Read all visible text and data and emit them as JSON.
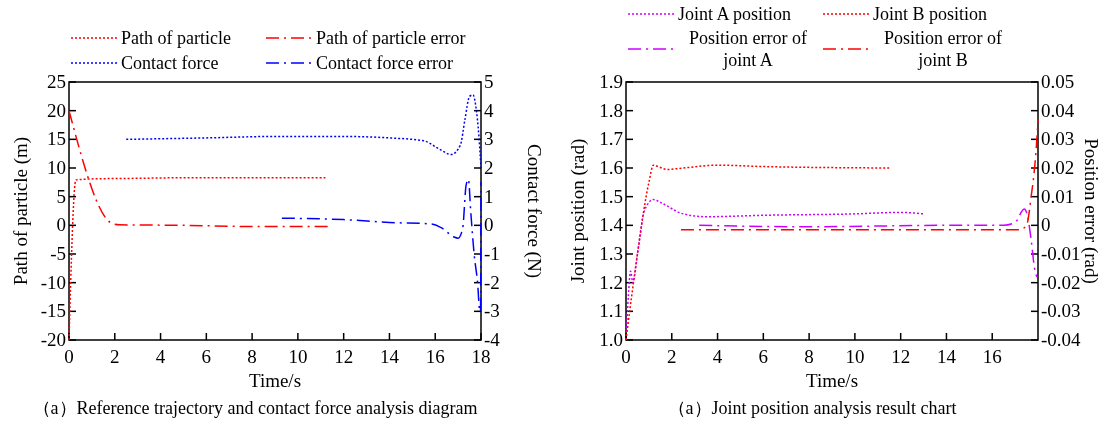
{
  "chart_data": [
    {
      "type": "line",
      "xlabel": "Time/s",
      "ylabel": "Path of particle (m)",
      "y2label": "Contact force (N)",
      "xlim": [
        0,
        18
      ],
      "xticks": [
        0,
        2,
        4,
        6,
        8,
        10,
        12,
        14,
        16,
        18
      ],
      "ylim": [
        -20,
        25
      ],
      "yticks": [
        -20,
        -15,
        -10,
        -5,
        0,
        5,
        10,
        15,
        20,
        25
      ],
      "y2lim": [
        -4,
        5
      ],
      "y2ticks": [
        -4,
        -3,
        -2,
        -1,
        0,
        1,
        2,
        3,
        4,
        5
      ],
      "grid": false,
      "legend": "top",
      "marker": "none",
      "annotations": [
        "（a）Reference trajectory and contact force analysis diagram"
      ],
      "series": [
        {
          "name": "Path of particle",
          "color": "#ff0000",
          "line_style": "dotted",
          "x": [
            0,
            0.3,
            1,
            3,
            5,
            8,
            11.2
          ],
          "values": [
            -20,
            7.9,
            8.1,
            8.2,
            8.3,
            8.3,
            8.3
          ]
        },
        {
          "name": "Path of particle error",
          "color": "#ff0000",
          "line_style": "dashdot",
          "x": [
            0,
            1.9,
            2.2,
            5,
            8,
            9,
            11.3
          ],
          "values": [
            20,
            0.3,
            0.1,
            0,
            -0.2,
            -0.2,
            -0.2
          ]
        },
        {
          "name": "Contact force",
          "color": "#0000ff",
          "line_style": "dotted",
          "axis": "y2",
          "x": [
            2.5,
            6,
            9,
            12,
            14,
            15.5,
            16.2,
            16.7,
            17.1,
            17.3,
            17.5,
            17.65,
            17.8,
            17.9,
            18
          ],
          "values": [
            3.0,
            3.05,
            3.1,
            3.1,
            3.05,
            2.95,
            2.65,
            2.47,
            2.8,
            3.7,
            4.5,
            4.55,
            4.0,
            3.2,
            2.0
          ]
        },
        {
          "name": "Contact force error",
          "color": "#0000ff",
          "line_style": "dashdot",
          "axis": "y2",
          "x": [
            9.3,
            12,
            14,
            15.8,
            16.3,
            16.8,
            17.0,
            17.2,
            17.35,
            17.45,
            17.55,
            17.7,
            17.85,
            17.95,
            17.98,
            18
          ],
          "values": [
            0.25,
            0.2,
            0.1,
            0.05,
            -0.1,
            -0.4,
            -0.45,
            -0.1,
            1.4,
            1.6,
            0.5,
            -1,
            -2,
            -3,
            -3,
            1.5
          ]
        }
      ]
    },
    {
      "type": "line",
      "xlabel": "Time/s",
      "ylabel": "Joint position (rad)",
      "y2label": "Position error (rad)",
      "xlim": [
        0,
        18
      ],
      "xticks": [
        0,
        2,
        4,
        6,
        8,
        10,
        12,
        14,
        16
      ],
      "ylim": [
        1.0,
        1.9
      ],
      "yticks": [
        {
          "value": 1.0,
          "label": "1.0"
        },
        1.1,
        1.2,
        1.3,
        1.4,
        1.5,
        1.6,
        1.7,
        1.8,
        1.9
      ],
      "y2lim": [
        -0.04,
        0.05
      ],
      "y2ticks": [
        -0.04,
        -0.03,
        -0.02,
        -0.01,
        0,
        0.01,
        0.02,
        0.03,
        0.04,
        0.05
      ],
      "grid": false,
      "legend": "top",
      "marker": "none",
      "annotations": [
        "（a）Joint position analysis result chart"
      ],
      "series": [
        {
          "name": "Joint A position",
          "color": "#cc00ff",
          "line_style": "dotted",
          "x": [
            0,
            0.1,
            0.2,
            0.3,
            0.5,
            0.8,
            1.2,
            1.5,
            2.5,
            3.5,
            6,
            10,
            12,
            13
          ],
          "values": [
            1.0,
            1.15,
            1.24,
            1.2,
            1.3,
            1.45,
            1.49,
            1.48,
            1.44,
            1.43,
            1.435,
            1.44,
            1.445,
            1.44
          ]
        },
        {
          "name": "Joint B position",
          "color": "#ff0000",
          "line_style": "dotted",
          "x": [
            0,
            0.5,
            1.0,
            1.2,
            1.4,
            1.8,
            2.5,
            4,
            6,
            11.5
          ],
          "values": [
            1.0,
            1.3,
            1.55,
            1.61,
            1.605,
            1.595,
            1.6,
            1.61,
            1.605,
            1.6
          ]
        },
        {
          "name": "Position error of joint A",
          "color": "#cc00ff",
          "line_style": "dashdot",
          "axis": "y2",
          "x": [
            3.2,
            8,
            14,
            16.5,
            17,
            17.4,
            17.55,
            17.7,
            17.85,
            17.95
          ],
          "values": [
            0,
            -0.0005,
            0,
            0,
            0.001,
            0.0057,
            0.003,
            -0.005,
            -0.015,
            -0.018
          ]
        },
        {
          "name": "Position error of joint B",
          "color": "#ff0000",
          "line_style": "dashdot",
          "axis": "y2",
          "x": [
            2.4,
            10,
            16,
            17.2,
            17.5,
            17.7,
            17.85,
            17.95,
            18
          ],
          "values": [
            -0.0015,
            -0.0015,
            -0.0015,
            -0.0015,
            0,
            0.01,
            0.02,
            0.03,
            0.037
          ]
        }
      ]
    }
  ]
}
